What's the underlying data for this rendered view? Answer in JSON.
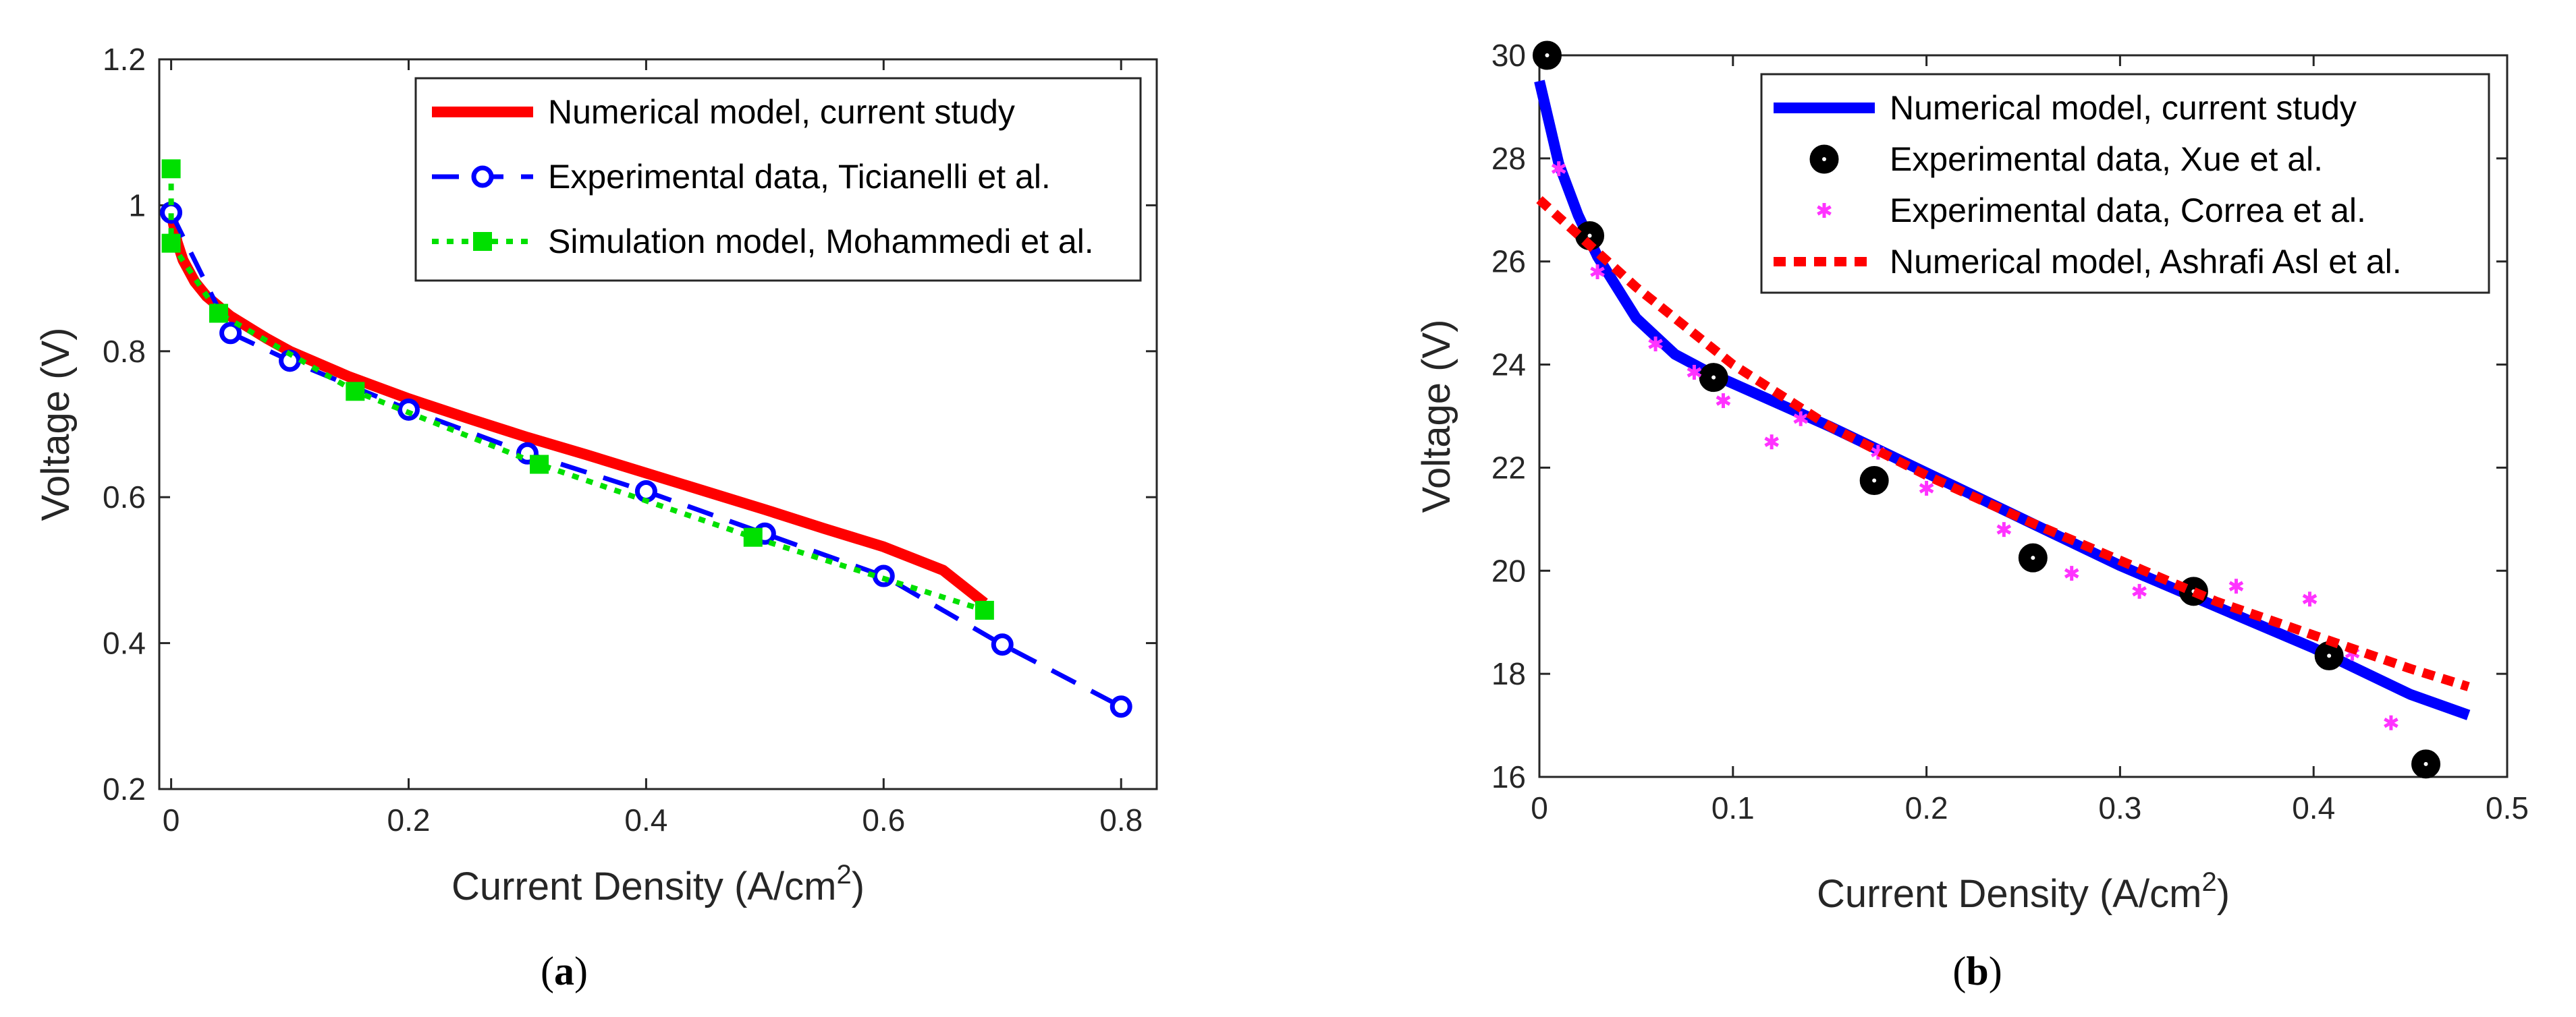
{
  "chart_data": [
    {
      "type": "line",
      "caption": {
        "open": "(",
        "letter": "a",
        "close": ")"
      },
      "xlabel": "Current Density (A/cm",
      "xlabel_sup": "2",
      "xlabel_close": ")",
      "ylabel": "Voltage (V)",
      "xlim": [
        -0.01,
        0.83
      ],
      "ylim": [
        0.2,
        1.2
      ],
      "xticks": [
        0,
        0.2,
        0.4,
        0.6,
        0.8
      ],
      "xtick_labels": [
        "0",
        "0.2",
        "0.4",
        "0.6",
        "0.8"
      ],
      "yticks": [
        0.2,
        0.4,
        0.6,
        0.8,
        1.0,
        1.2
      ],
      "ytick_labels": [
        "0.2",
        "0.4",
        "0.6",
        "0.8",
        "1",
        "1.2"
      ],
      "grid": false,
      "legend_position": "top-right",
      "series": [
        {
          "name": "Numerical model, current study",
          "color": "#ff0000",
          "style": "solid-thick",
          "marker": "none",
          "x": [
            0,
            0.005,
            0.01,
            0.02,
            0.03,
            0.05,
            0.08,
            0.1,
            0.15,
            0.2,
            0.25,
            0.3,
            0.35,
            0.4,
            0.45,
            0.5,
            0.55,
            0.6,
            0.65,
            0.685
          ],
          "y": [
            0.99,
            0.95,
            0.925,
            0.895,
            0.875,
            0.848,
            0.818,
            0.8,
            0.765,
            0.735,
            0.708,
            0.682,
            0.658,
            0.633,
            0.608,
            0.583,
            0.557,
            0.532,
            0.5,
            0.455
          ]
        },
        {
          "name": "Experimental data, Ticianelli et al.",
          "color": "#0000ff",
          "style": "dashed",
          "marker": "circle",
          "x": [
            0,
            0.05,
            0.1,
            0.2,
            0.3,
            0.4,
            0.5,
            0.6,
            0.7,
            0.8
          ],
          "y": [
            0.99,
            0.825,
            0.787,
            0.72,
            0.66,
            0.608,
            0.55,
            0.492,
            0.398,
            0.313
          ]
        },
        {
          "name": "Simulation model, Mohammedi et al.",
          "color": "#00e000",
          "style": "dotted",
          "marker": "square",
          "x": [
            0,
            0,
            0.04,
            0.155,
            0.31,
            0.49,
            0.685
          ],
          "y": [
            1.05,
            0.948,
            0.852,
            0.745,
            0.645,
            0.545,
            0.445
          ]
        }
      ]
    },
    {
      "type": "line",
      "caption": {
        "open": "(",
        "letter": "b",
        "close": ")"
      },
      "xlabel": "Current Density (A/cm",
      "xlabel_sup": "2",
      "xlabel_close": ")",
      "ylabel": "Voltage (V)",
      "xlim": [
        0,
        0.5
      ],
      "ylim": [
        16,
        30
      ],
      "xticks": [
        0,
        0.1,
        0.2,
        0.3,
        0.4,
        0.5
      ],
      "xtick_labels": [
        "0",
        "0.1",
        "0.2",
        "0.3",
        "0.4",
        "0.5"
      ],
      "yticks": [
        16,
        18,
        20,
        22,
        24,
        26,
        28,
        30
      ],
      "ytick_labels": [
        "16",
        "18",
        "20",
        "22",
        "24",
        "26",
        "28",
        "30"
      ],
      "grid": false,
      "legend_position": "top-right",
      "series": [
        {
          "name": "Numerical model, current study",
          "color": "#0000ff",
          "style": "solid-thick",
          "marker": "none",
          "x": [
            0,
            0.005,
            0.01,
            0.02,
            0.03,
            0.05,
            0.07,
            0.09,
            0.12,
            0.15,
            0.2,
            0.25,
            0.3,
            0.35,
            0.4,
            0.45,
            0.48
          ],
          "y": [
            29.5,
            28.7,
            27.9,
            26.9,
            26.1,
            24.9,
            24.2,
            23.8,
            23.3,
            22.8,
            21.9,
            21.0,
            20.1,
            19.3,
            18.5,
            17.6,
            17.2
          ]
        },
        {
          "name": "Experimental data, Xue et al.",
          "color": "#000000",
          "style": "none",
          "marker": "circle-large",
          "x": [
            0.004,
            0.026,
            0.09,
            0.173,
            0.255,
            0.338,
            0.408,
            0.458
          ],
          "y": [
            30.0,
            26.5,
            23.75,
            21.75,
            20.25,
            19.6,
            18.35,
            16.25
          ]
        },
        {
          "name": "Experimental data, Correa et al.",
          "color": "#ff33ff",
          "style": "none",
          "marker": "asterisk",
          "x": [
            0.01,
            0.03,
            0.06,
            0.08,
            0.095,
            0.12,
            0.135,
            0.175,
            0.2,
            0.24,
            0.275,
            0.31,
            0.36,
            0.398,
            0.42,
            0.44
          ],
          "y": [
            27.8,
            25.8,
            24.4,
            23.85,
            23.3,
            22.5,
            22.95,
            22.3,
            21.6,
            20.8,
            19.95,
            19.6,
            19.7,
            19.45,
            18.4,
            17.05
          ]
        },
        {
          "name": "Numerical model, Ashrafi Asl et al.",
          "color": "#ff0000",
          "style": "dotted-thick",
          "marker": "none",
          "x": [
            0,
            0.05,
            0.1,
            0.15,
            0.2,
            0.25,
            0.3,
            0.35,
            0.4,
            0.45,
            0.48
          ],
          "y": [
            27.2,
            25.5,
            24.0,
            22.8,
            21.85,
            21.0,
            20.2,
            19.4,
            18.75,
            18.1,
            17.75
          ]
        }
      ]
    }
  ]
}
